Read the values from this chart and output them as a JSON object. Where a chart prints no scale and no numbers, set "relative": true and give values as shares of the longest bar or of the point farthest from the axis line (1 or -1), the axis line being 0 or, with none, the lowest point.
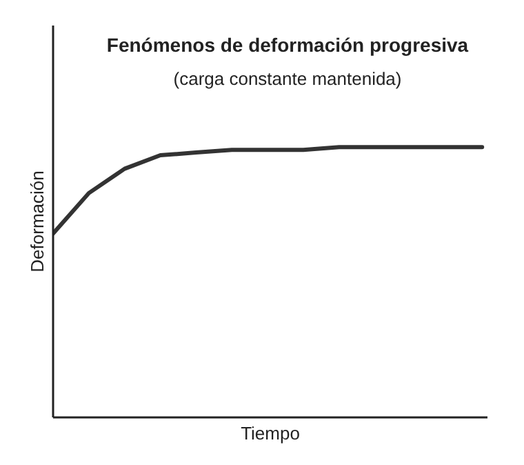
{
  "chart_data": {
    "type": "line",
    "title": "Fenómenos de deformación progresiva",
    "subtitle": "(carga constante mantenida)",
    "xlabel": "Tiempo",
    "ylabel": "Deformación",
    "relative": true,
    "categories": [
      null,
      null,
      null,
      null,
      null,
      null,
      null,
      null,
      null,
      null,
      null,
      null,
      null
    ],
    "series": [
      {
        "color": "#333333",
        "values": [
          0.68,
          0.83,
          0.92,
          0.97,
          0.98,
          0.99,
          0.99,
          0.99,
          1,
          1,
          1,
          1,
          1
        ]
      }
    ],
    "marker": "none",
    "line_style": "solid"
  }
}
